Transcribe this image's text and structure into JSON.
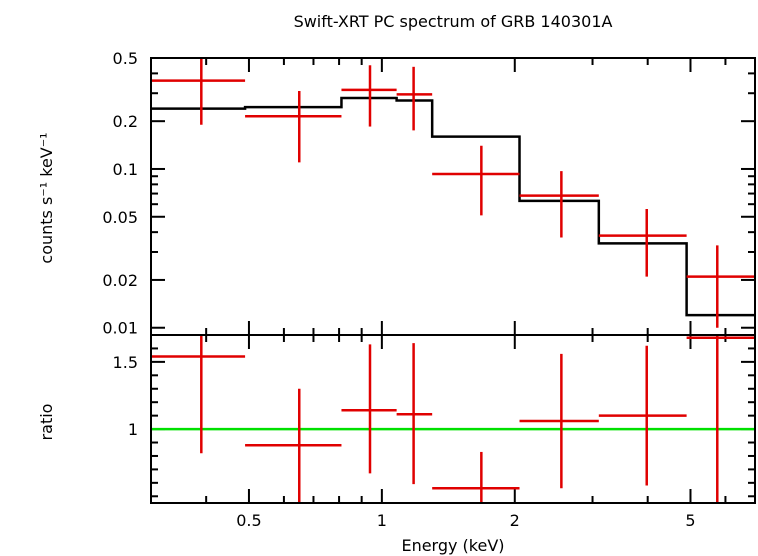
{
  "chart_data": [
    {
      "type": "scatter",
      "title": "Swift-XRT PC spectrum of GRB 140301A",
      "xlabel": "",
      "ylabel": "counts s⁻¹ keV⁻¹",
      "xscale": "log",
      "yscale": "log",
      "xlim": [
        0.3,
        7.0
      ],
      "ylim": [
        0.009,
        0.5
      ],
      "yticks": [
        0.5,
        0.2,
        0.1,
        0.05,
        0.02,
        0.01
      ],
      "ytick_labels": [
        "0.5",
        "0.2",
        "0.1",
        "0.05",
        "0.02",
        "0.01"
      ],
      "grid": false,
      "series": [
        {
          "name": "",
          "kind": "data-with-errors",
          "color": "#e00000",
          "points": [
            {
              "x": 0.39,
              "xlo": 0.3,
              "xhi": 0.49,
              "y": 0.36,
              "ylo": 0.19,
              "yhi": 0.5
            },
            {
              "x": 0.65,
              "xlo": 0.49,
              "xhi": 0.81,
              "y": 0.215,
              "ylo": 0.11,
              "yhi": 0.31
            },
            {
              "x": 0.94,
              "xlo": 0.81,
              "xhi": 1.08,
              "y": 0.315,
              "ylo": 0.185,
              "yhi": 0.45
            },
            {
              "x": 1.18,
              "xlo": 1.08,
              "xhi": 1.3,
              "y": 0.295,
              "ylo": 0.175,
              "yhi": 0.44
            },
            {
              "x": 1.68,
              "xlo": 1.3,
              "xhi": 2.05,
              "y": 0.093,
              "ylo": 0.051,
              "yhi": 0.14
            },
            {
              "x": 2.55,
              "xlo": 2.05,
              "xhi": 3.1,
              "y": 0.068,
              "ylo": 0.037,
              "yhi": 0.097
            },
            {
              "x": 3.98,
              "xlo": 3.1,
              "xhi": 4.9,
              "y": 0.038,
              "ylo": 0.021,
              "yhi": 0.056
            },
            {
              "x": 5.75,
              "xlo": 4.9,
              "xhi": 7.0,
              "y": 0.021,
              "ylo": 0.01,
              "yhi": 0.033
            }
          ]
        },
        {
          "name": "",
          "kind": "model-step",
          "color": "#000000",
          "steps": [
            {
              "xlo": 0.3,
              "xhi": 0.49,
              "y": 0.24
            },
            {
              "xlo": 0.49,
              "xhi": 0.81,
              "y": 0.245
            },
            {
              "xlo": 0.81,
              "xhi": 1.08,
              "y": 0.28
            },
            {
              "xlo": 1.08,
              "xhi": 1.3,
              "y": 0.27
            },
            {
              "xlo": 1.3,
              "xhi": 2.05,
              "y": 0.16
            },
            {
              "xlo": 2.05,
              "xhi": 3.1,
              "y": 0.063
            },
            {
              "xlo": 3.1,
              "xhi": 4.9,
              "y": 0.034
            },
            {
              "xlo": 4.9,
              "xhi": 7.0,
              "y": 0.012
            }
          ]
        }
      ]
    },
    {
      "type": "scatter",
      "title": "",
      "xlabel": "Energy (keV)",
      "ylabel": "ratio",
      "xscale": "log",
      "yscale": "linear",
      "xlim": [
        0.3,
        7.0
      ],
      "ylim": [
        0.45,
        1.7
      ],
      "xticks": [
        0.5,
        1,
        2,
        5
      ],
      "xtick_labels": [
        "0.5",
        "1",
        "2",
        "5"
      ],
      "yticks": [
        1.5,
        1
      ],
      "ytick_labels": [
        "1.5",
        "1"
      ],
      "reference_line": {
        "y": 1,
        "color": "#00e000"
      },
      "grid": false,
      "series": [
        {
          "name": "",
          "kind": "data-with-errors",
          "color": "#e00000",
          "points": [
            {
              "x": 0.39,
              "xlo": 0.3,
              "xhi": 0.49,
              "y": 1.54,
              "ylo": 0.82,
              "yhi": 1.7
            },
            {
              "x": 0.65,
              "xlo": 0.49,
              "xhi": 0.81,
              "y": 0.88,
              "ylo": 0.45,
              "yhi": 1.3
            },
            {
              "x": 0.94,
              "xlo": 0.81,
              "xhi": 1.08,
              "y": 1.14,
              "ylo": 0.67,
              "yhi": 1.63
            },
            {
              "x": 1.18,
              "xlo": 1.08,
              "xhi": 1.3,
              "y": 1.11,
              "ylo": 0.59,
              "yhi": 1.64
            },
            {
              "x": 1.68,
              "xlo": 1.3,
              "xhi": 2.05,
              "y": 0.56,
              "ylo": 0.45,
              "yhi": 0.83
            },
            {
              "x": 2.55,
              "xlo": 2.05,
              "xhi": 3.1,
              "y": 1.06,
              "ylo": 0.56,
              "yhi": 1.56
            },
            {
              "x": 3.98,
              "xlo": 3.1,
              "xhi": 4.9,
              "y": 1.1,
              "ylo": 0.58,
              "yhi": 1.62
            },
            {
              "x": 5.75,
              "xlo": 4.9,
              "xhi": 7.0,
              "y": 1.68,
              "ylo": 0.45,
              "yhi": 1.7
            }
          ]
        }
      ]
    }
  ]
}
